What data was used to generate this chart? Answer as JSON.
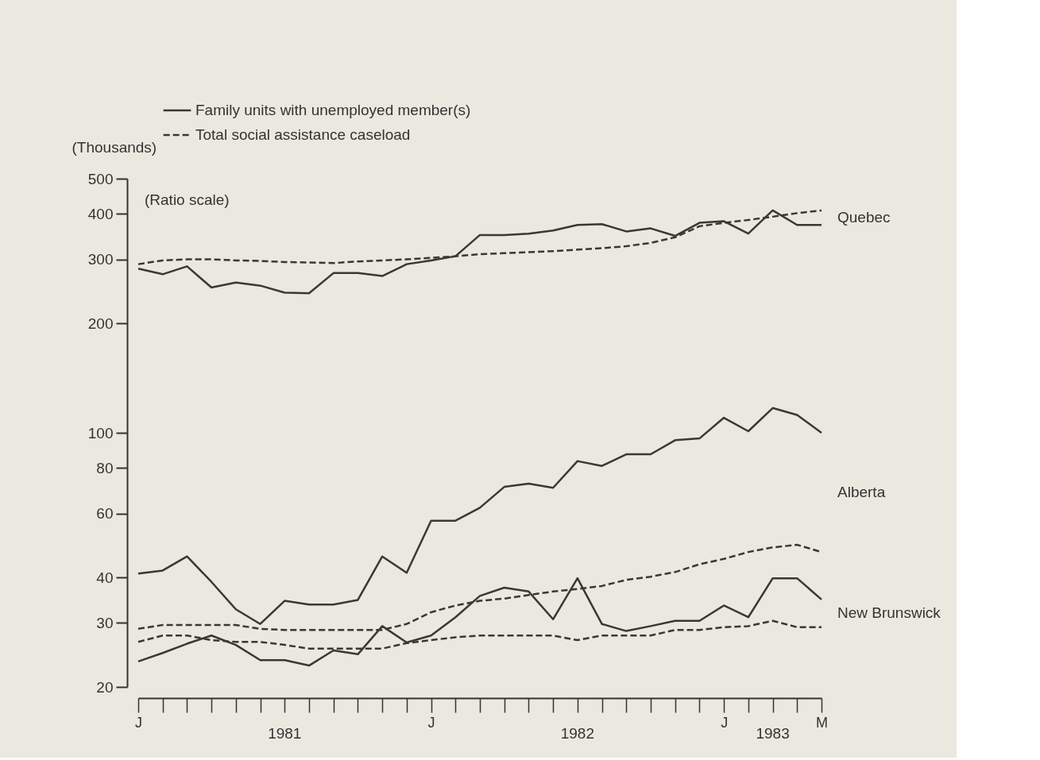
{
  "chart_data": {
    "type": "line",
    "ylabel": "(Thousands)",
    "log": true,
    "grid": false,
    "legend": "top left",
    "marker": "none",
    "categories": [
      "J",
      null,
      null,
      null,
      null,
      null,
      null,
      null,
      null,
      null,
      null,
      null,
      "J",
      null,
      null,
      null,
      null,
      null,
      null,
      null,
      null,
      null,
      null,
      null,
      "J",
      null,
      null,
      null,
      "M"
    ],
    "ylim": [
      20,
      500
    ],
    "yticks": [
      20,
      30,
      40,
      60,
      80,
      100,
      200,
      300,
      400,
      500
    ],
    "series": [
      {
        "name": "Family units with unemployed member(s)",
        "color": "#3a3835",
        "line_style": "solid",
        "values": [
          283,
          273,
          287,
          251,
          259,
          254,
          243,
          242,
          275,
          275,
          270,
          291,
          298,
          306,
          350,
          350,
          353,
          360,
          373,
          375,
          358,
          365,
          348,
          378,
          382,
          353,
          409,
          373,
          373
        ]
      },
      {
        "name": "Total social assistance caseload",
        "color": "#3a3835",
        "line_style": "dashed",
        "values": [
          291,
          298,
          300,
          300,
          298,
          297,
          295,
          294,
          293,
          296,
          298,
          300,
          303,
          306,
          310,
          312,
          314,
          316,
          319,
          322,
          326,
          333,
          345,
          370,
          378,
          385,
          393,
          402,
          409
        ]
      },
      {
        "color": "#3a3835",
        "line_style": "solid",
        "values": [
          41.0,
          41.8,
          45.7,
          38.9,
          32.7,
          29.8,
          34.5,
          33.7,
          33.7,
          34.7,
          45.7,
          41.2,
          57.3,
          57.3,
          62.2,
          71.0,
          72.5,
          70.6,
          83.6,
          81.1,
          87.3,
          87.3,
          95.4,
          96.5,
          110,
          101,
          117,
          112,
          100
        ]
      },
      {
        "color": "#3a3835",
        "line_style": "dashed",
        "values": [
          28.9,
          29.6,
          29.6,
          29.6,
          29.6,
          28.9,
          28.7,
          28.7,
          28.7,
          28.7,
          28.7,
          29.8,
          32.1,
          33.5,
          34.5,
          35.0,
          35.8,
          36.6,
          37.2,
          37.9,
          39.4,
          40.2,
          41.4,
          43.5,
          45.0,
          47.0,
          48.4,
          49.2,
          47.0
        ]
      },
      {
        "color": "#3a3835",
        "line_style": "solid",
        "values": [
          23.5,
          24.8,
          26.3,
          27.7,
          26.1,
          23.7,
          23.7,
          22.9,
          25.2,
          24.6,
          29.4,
          26.5,
          27.7,
          31.1,
          35.6,
          37.5,
          36.6,
          30.7,
          39.8,
          29.8,
          28.5,
          29.4,
          30.4,
          30.4,
          33.5,
          31.1,
          39.8,
          39.8,
          34.8
        ]
      },
      {
        "color": "#3a3835",
        "line_style": "dashed",
        "values": [
          26.6,
          27.7,
          27.7,
          26.9,
          26.6,
          26.6,
          26.1,
          25.5,
          25.5,
          25.5,
          25.5,
          26.4,
          26.9,
          27.4,
          27.7,
          27.7,
          27.7,
          27.7,
          26.9,
          27.7,
          27.7,
          27.7,
          28.7,
          28.7,
          29.2,
          29.4,
          30.4,
          29.2,
          29.2
        ]
      }
    ],
    "annotations": [
      "Quebec",
      "Alberta",
      "New Brunswick",
      "(Ratio scale)",
      "1981",
      "1982",
      "1983"
    ]
  }
}
